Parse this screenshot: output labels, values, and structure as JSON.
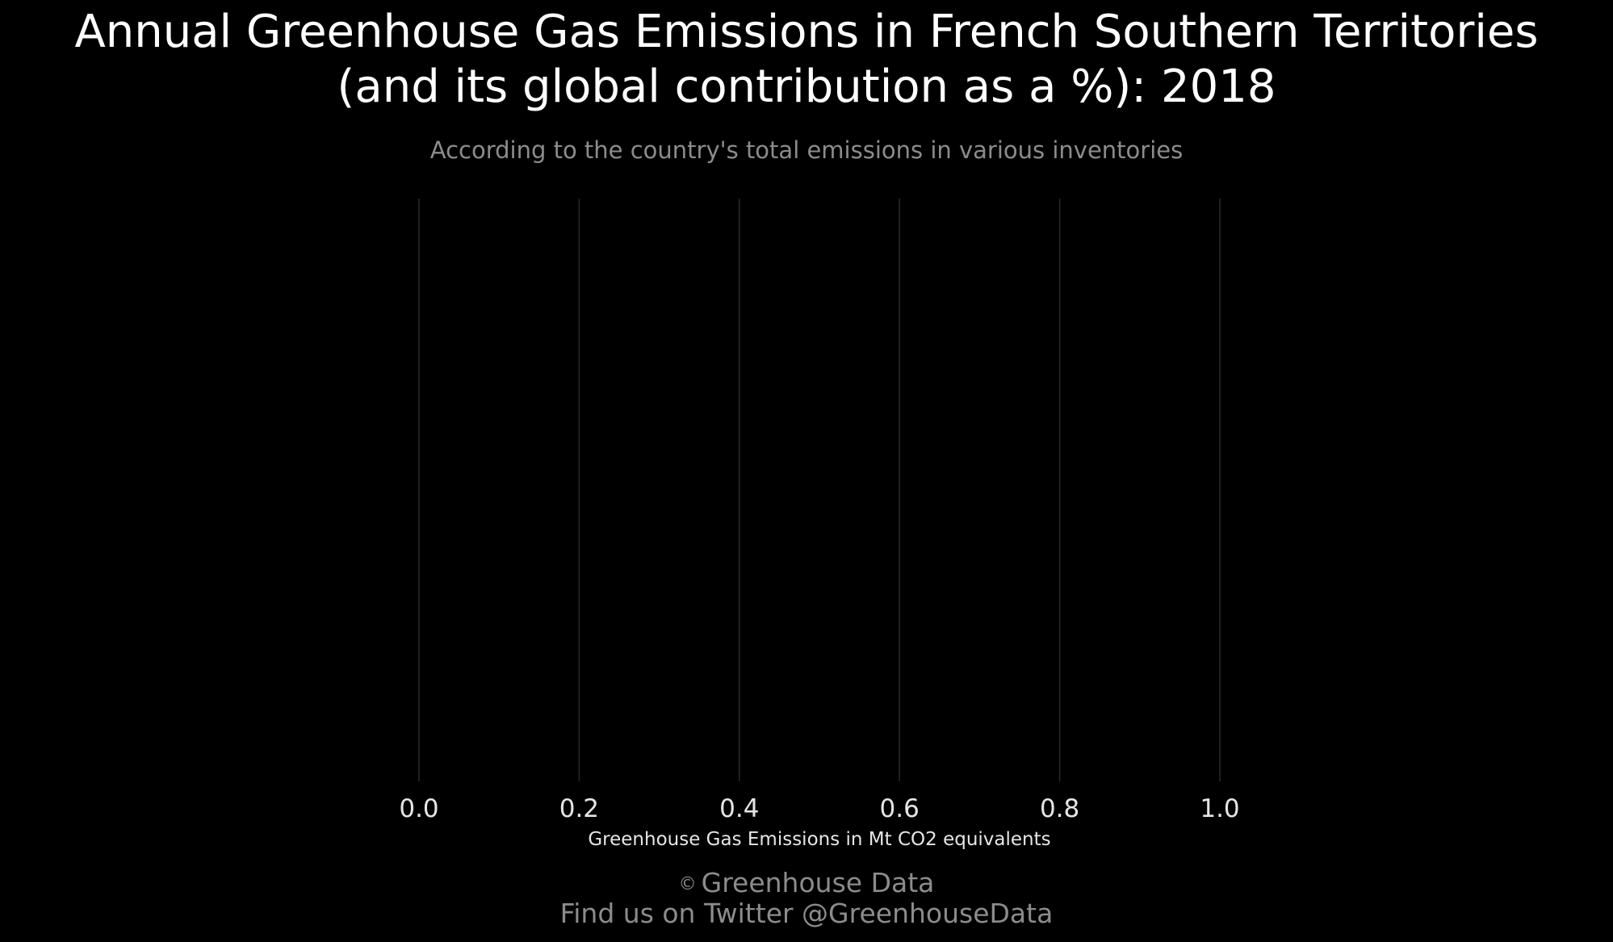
{
  "title_lines": [
    "Annual Greenhouse Gas Emissions in French Southern Territories",
    "(and its global contribution as a %): 2018"
  ],
  "subtitle": "According to the country's total emissions in various inventories",
  "footer": {
    "copyright_icon": "copyright-icon",
    "credit": "Greenhouse Data",
    "twitter": "Find us on Twitter @GreenhouseData"
  },
  "colors": {
    "background": "#000000",
    "title": "#ffffff",
    "muted_text": "#8c8c8c",
    "gridline": "#2a2a2a",
    "tick_label": "#e6e6e6"
  },
  "chart_data": {
    "type": "bar",
    "orientation": "horizontal",
    "title": "Annual Greenhouse Gas Emissions in French Southern Territories (and its global contribution as a %): 2018",
    "subtitle": "According to the country's total emissions in various inventories",
    "xlabel": "Greenhouse Gas Emissions in Mt CO2 equivalents",
    "ylabel": "",
    "xlim": [
      0,
      1
    ],
    "x_ticks": [
      0.0,
      0.2,
      0.4,
      0.6,
      0.8,
      1.0
    ],
    "x_tick_labels": [
      "0.0",
      "0.2",
      "0.4",
      "0.6",
      "0.8",
      "1.0"
    ],
    "categories": [],
    "values": [],
    "grid": "vertical"
  }
}
